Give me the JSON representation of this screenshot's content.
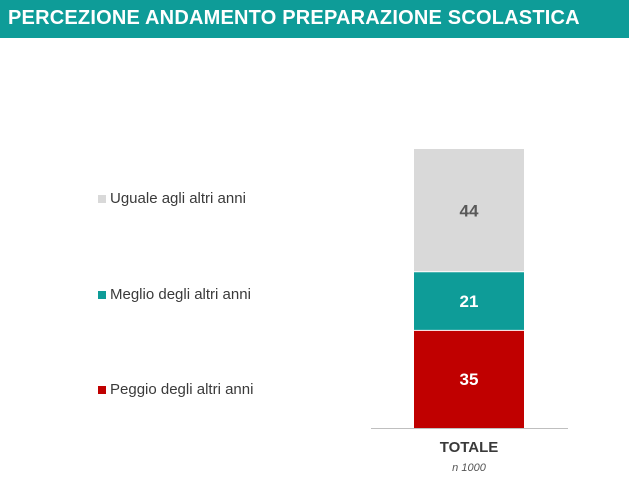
{
  "header": {
    "title": "PERCEZIONE ANDAMENTO PREPARAZIONE SCOLASTICA"
  },
  "colors": {
    "header_bg": "#0e9c98"
  },
  "chart_data": {
    "type": "bar",
    "stacked": true,
    "categories": [
      "TOTALE"
    ],
    "category_note": "n 1000",
    "ylim": [
      0,
      100
    ],
    "grid": false,
    "legend_placement": "left",
    "series": [
      {
        "name": "Peggio degli altri anni",
        "values": [
          35
        ],
        "color": "#c00000",
        "label_color": "#ffffff"
      },
      {
        "name": "Meglio degli altri anni",
        "values": [
          21
        ],
        "color": "#0e9c98",
        "label_color": "#ffffff"
      },
      {
        "name": "Uguale agli altri anni",
        "values": [
          44
        ],
        "color": "#d9d9d9",
        "label_color": "#595959"
      }
    ]
  }
}
